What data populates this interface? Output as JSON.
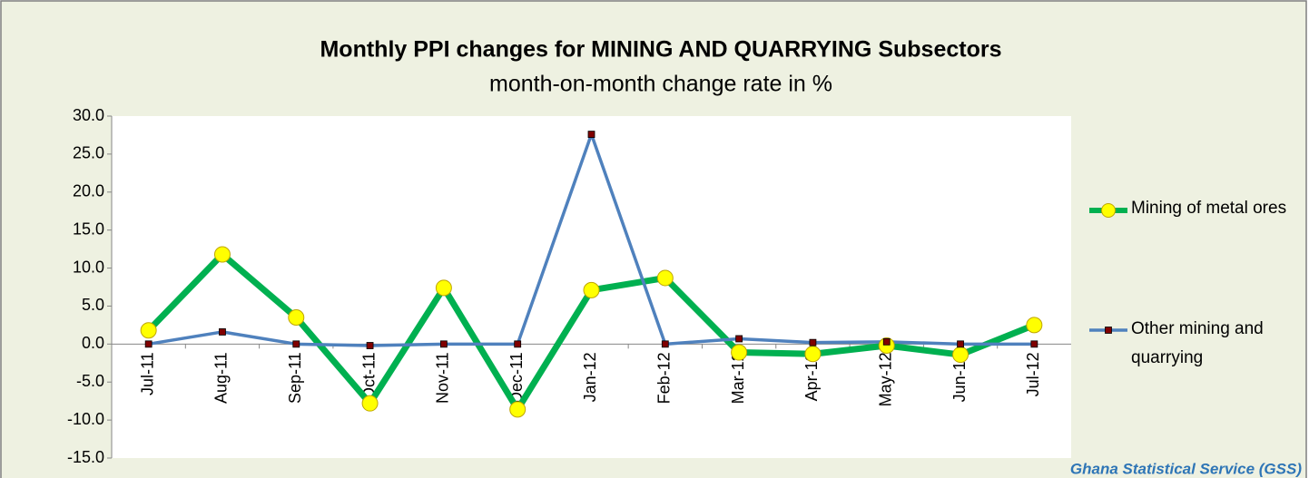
{
  "chart_data": {
    "type": "line",
    "title": "Monthly PPI changes for MINING AND QUARRYING Subsectors",
    "subtitle": "month-on-month change rate in %",
    "source": "Ghana Statistical Service (GSS)",
    "categories": [
      "Jul-11",
      "Aug-11",
      "Sep-11",
      "Oct-11",
      "Nov-11",
      "Dec-11",
      "Jan-12",
      "Feb-12",
      "Mar-12",
      "Apr-12",
      "May-12",
      "Jun-12",
      "Jul-12"
    ],
    "series": [
      {
        "name": "Mining of metal ores",
        "color": "#00b050",
        "values": [
          1.8,
          11.8,
          3.5,
          -7.8,
          7.4,
          -8.6,
          7.1,
          8.7,
          -1.1,
          -1.3,
          -0.2,
          -1.4,
          2.5
        ]
      },
      {
        "name": "Other mining and quarrying",
        "color": "#4f81bd",
        "values": [
          0.0,
          1.6,
          0.0,
          -0.2,
          0.0,
          0.0,
          27.6,
          0.0,
          0.7,
          0.2,
          0.3,
          0.0,
          0.0
        ]
      }
    ],
    "ylim": [
      -15,
      30
    ],
    "yticks": [
      {
        "value": -15,
        "label": "-15.0"
      },
      {
        "value": -10,
        "label": "-10.0"
      },
      {
        "value": -5,
        "label": "-5.0"
      },
      {
        "value": 0,
        "label": "0.0"
      },
      {
        "value": 5,
        "label": "5.0"
      },
      {
        "value": 10,
        "label": "10.0"
      },
      {
        "value": 15,
        "label": "15.0"
      },
      {
        "value": 20,
        "label": "20.0"
      },
      {
        "value": 25,
        "label": "25.0"
      },
      {
        "value": 30,
        "label": "30.0"
      }
    ],
    "grid": false,
    "legend": "right"
  }
}
